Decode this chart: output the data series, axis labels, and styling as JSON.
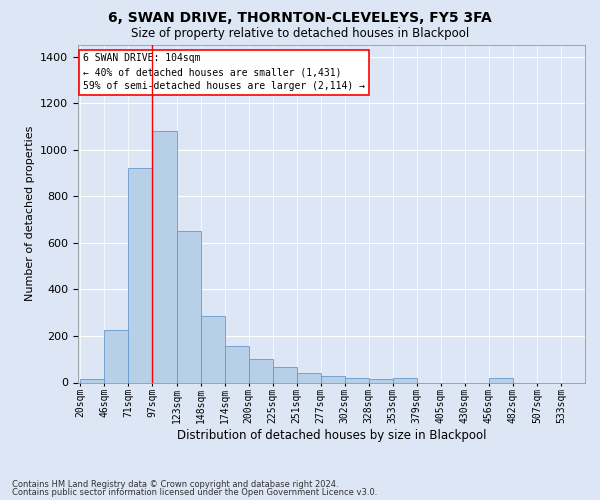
{
  "title": "6, SWAN DRIVE, THORNTON-CLEVELEYS, FY5 3FA",
  "subtitle": "Size of property relative to detached houses in Blackpool",
  "xlabel": "Distribution of detached houses by size in Blackpool",
  "ylabel": "Number of detached properties",
  "footnote1": "Contains HM Land Registry data © Crown copyright and database right 2024.",
  "footnote2": "Contains public sector information licensed under the Open Government Licence v3.0.",
  "annotation_line1": "6 SWAN DRIVE: 104sqm",
  "annotation_line2": "← 40% of detached houses are smaller (1,431)",
  "annotation_line3": "59% of semi-detached houses are larger (2,114) →",
  "bar_color": "#b8cfe8",
  "bar_edge_color": "#6699cc",
  "categories": [
    "20sqm",
    "46sqm",
    "71sqm",
    "97sqm",
    "123sqm",
    "148sqm",
    "174sqm",
    "200sqm",
    "225sqm",
    "251sqm",
    "277sqm",
    "302sqm",
    "328sqm",
    "353sqm",
    "379sqm",
    "405sqm",
    "430sqm",
    "456sqm",
    "482sqm",
    "507sqm",
    "533sqm"
  ],
  "values": [
    15,
    225,
    920,
    1080,
    650,
    285,
    155,
    100,
    65,
    42,
    28,
    18,
    15,
    20,
    0,
    0,
    0,
    20,
    0,
    0,
    0
  ],
  "ylim_max": 1450,
  "background_color": "#dce6f5",
  "grid_color": "#ffffff",
  "red_line_bin_index": 3
}
